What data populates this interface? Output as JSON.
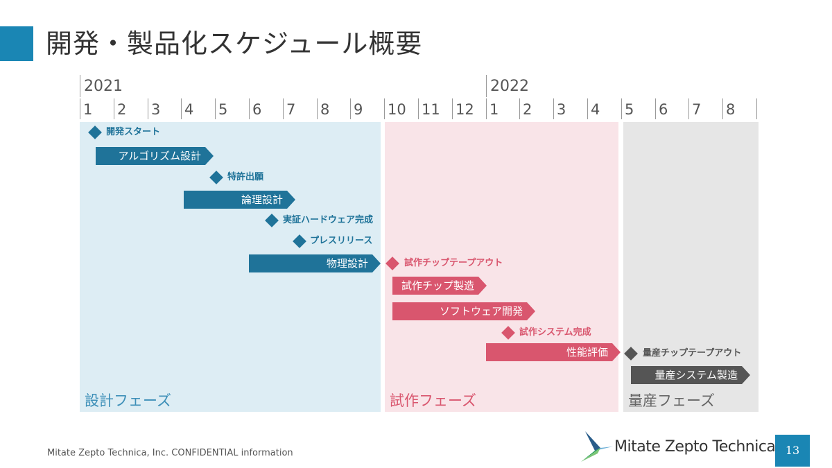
{
  "title": "開発・製品化スケジュール概要",
  "timeline": {
    "years": [
      "2021",
      "2022"
    ],
    "months": [
      "1",
      "2",
      "3",
      "4",
      "5",
      "6",
      "7",
      "8",
      "9",
      "10",
      "11",
      "12",
      "1",
      "2",
      "3",
      "4",
      "5",
      "6",
      "7",
      "8"
    ]
  },
  "phases": [
    {
      "label": "設計フェーズ",
      "color": "#ddedf4",
      "text_color": "#3d8fb8"
    },
    {
      "label": "試作フェーズ",
      "color": "#f9e4e8",
      "text_color": "#d9566e"
    },
    {
      "label": "量産フェーズ",
      "color": "#e6e6e6",
      "text_color": "#666666"
    }
  ],
  "items": [
    {
      "type": "milestone",
      "label": "開発スタート",
      "color": "#1f7399"
    },
    {
      "type": "task",
      "label": "アルゴリズム設計",
      "color": "#1f7399"
    },
    {
      "type": "milestone",
      "label": "特許出願",
      "color": "#1f7399"
    },
    {
      "type": "task",
      "label": "論理設計",
      "color": "#1f7399"
    },
    {
      "type": "milestone",
      "label": "実証ハードウェア完成",
      "color": "#1f7399"
    },
    {
      "type": "milestone",
      "label": "プレスリリース",
      "color": "#1f7399"
    },
    {
      "type": "task",
      "label": "物理設計",
      "color": "#1f7399"
    },
    {
      "type": "milestone",
      "label": "試作チップテープアウト",
      "color": "#d9566e"
    },
    {
      "type": "task",
      "label": "試作チップ製造",
      "color": "#d9566e"
    },
    {
      "type": "task",
      "label": "ソフトウェア開発",
      "color": "#d9566e"
    },
    {
      "type": "milestone",
      "label": "試作システム完成",
      "color": "#d9566e"
    },
    {
      "type": "task",
      "label": "性能評価",
      "color": "#d9566e"
    },
    {
      "type": "milestone",
      "label": "量産チップテープアウト",
      "color": "#555555"
    },
    {
      "type": "task",
      "label": "量産システム製造",
      "color": "#555555"
    }
  ],
  "footer": "Mitate Zepto Technica, Inc.   CONFIDENTIAL information",
  "logo_text": "Mitate Zepto Technica",
  "page_number": "13"
}
